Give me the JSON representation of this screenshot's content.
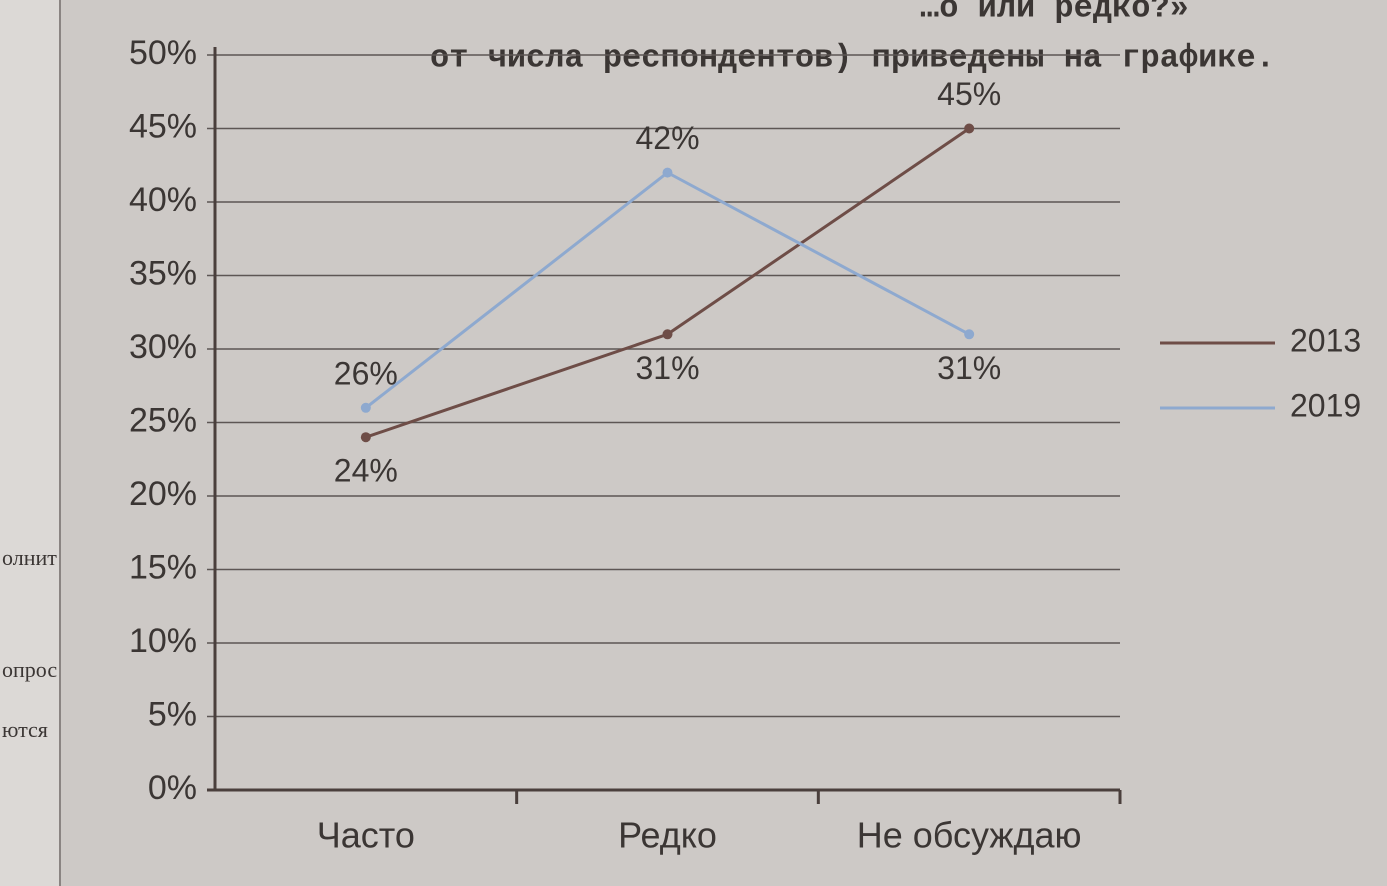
{
  "chart_data": {
    "type": "line",
    "caption": [
      "…о или редко?»",
      "от числа респондентов) приведены на графике."
    ],
    "margin_notes": [
      "олнит",
      "опрос",
      "ются"
    ],
    "categories": [
      "Часто",
      "Редко",
      "Не обсуждаю"
    ],
    "series": [
      {
        "name": "2013",
        "color": "#6e4d47",
        "values": [
          24,
          31,
          45
        ],
        "value_labels": [
          "24%",
          "31%",
          "45%"
        ]
      },
      {
        "name": "2019",
        "color": "#8ea9cf",
        "values": [
          26,
          42,
          31
        ],
        "value_labels": [
          "26%",
          "42%",
          "31%"
        ]
      }
    ],
    "ylim": [
      0,
      50
    ],
    "yticks": [
      {
        "value": 0,
        "label": "0%"
      },
      {
        "value": 5,
        "label": "5%"
      },
      {
        "value": 10,
        "label": "10%"
      },
      {
        "value": 15,
        "label": "15%"
      },
      {
        "value": 20,
        "label": "20%"
      },
      {
        "value": 25,
        "label": "25%"
      },
      {
        "value": 30,
        "label": "30%"
      },
      {
        "value": 35,
        "label": "35%"
      },
      {
        "value": 40,
        "label": "40%"
      },
      {
        "value": 45,
        "label": "45%"
      },
      {
        "value": 50,
        "label": "50%"
      }
    ],
    "grid": true,
    "legend": "right"
  }
}
